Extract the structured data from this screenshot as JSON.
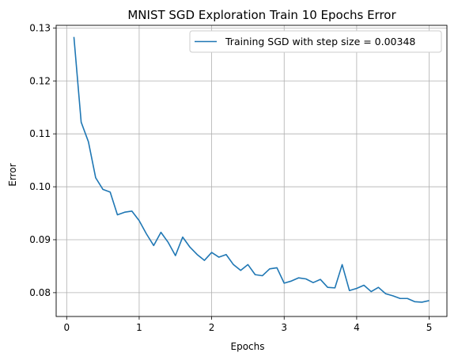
{
  "chart_data": {
    "type": "line",
    "title": "MNIST SGD Exploration Train 10 Epochs Error",
    "xlabel": "Epochs",
    "ylabel": "Error",
    "xlim": [
      -0.145,
      5.245
    ],
    "ylim": [
      0.0755,
      0.1305
    ],
    "xticks": [
      0,
      1,
      2,
      3,
      4,
      5
    ],
    "yticks": [
      0.08,
      0.09,
      0.1,
      0.11,
      0.12,
      0.13
    ],
    "xtick_labels": [
      "0",
      "1",
      "2",
      "3",
      "4",
      "5"
    ],
    "ytick_labels": [
      "0.08",
      "0.09",
      "0.10",
      "0.11",
      "0.12",
      "0.13"
    ],
    "grid": true,
    "legend_position": "top-right",
    "series": [
      {
        "name": "Training SGD with step size = 0.00348",
        "color": "#1f77b4",
        "x": [
          0.1,
          0.2,
          0.3,
          0.4,
          0.5,
          0.6,
          0.7,
          0.8,
          0.9,
          1.0,
          1.1,
          1.2,
          1.3,
          1.4,
          1.5,
          1.6,
          1.7,
          1.8,
          1.9,
          2.0,
          2.1,
          2.2,
          2.3,
          2.4,
          2.5,
          2.6,
          2.7,
          2.8,
          2.9,
          3.0,
          3.1,
          3.2,
          3.3,
          3.4,
          3.5,
          3.6,
          3.7,
          3.8,
          3.9,
          4.0,
          4.1,
          4.2,
          4.3,
          4.4,
          4.5,
          4.6,
          4.7,
          4.8,
          4.9,
          5.0
        ],
        "y": [
          0.1283,
          0.1122,
          0.1085,
          0.1017,
          0.0995,
          0.099,
          0.0947,
          0.0952,
          0.0954,
          0.0936,
          0.0911,
          0.0889,
          0.0914,
          0.0895,
          0.087,
          0.0905,
          0.0886,
          0.0872,
          0.0861,
          0.0876,
          0.0867,
          0.0872,
          0.0853,
          0.0842,
          0.0853,
          0.0834,
          0.0832,
          0.0845,
          0.0847,
          0.0818,
          0.0822,
          0.0828,
          0.0826,
          0.0819,
          0.0825,
          0.081,
          0.0809,
          0.0853,
          0.0804,
          0.0808,
          0.0814,
          0.0802,
          0.081,
          0.0798,
          0.0794,
          0.0789,
          0.0789,
          0.0783,
          0.0782,
          0.0785
        ]
      }
    ]
  }
}
